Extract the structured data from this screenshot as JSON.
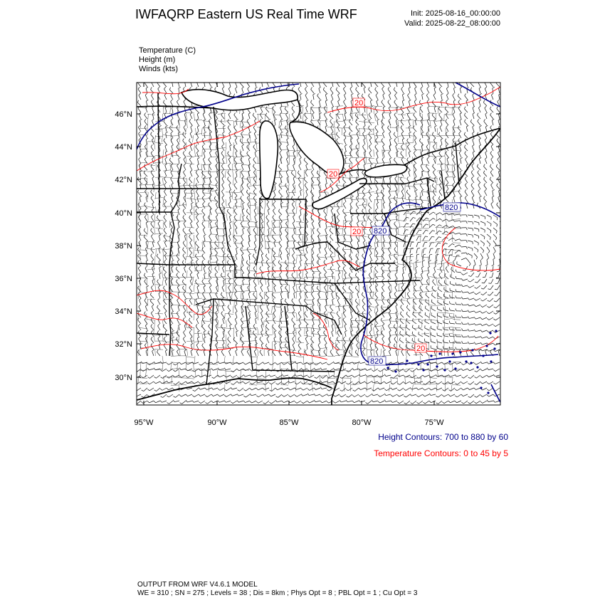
{
  "header": {
    "title": "IWFAQRP Eastern US Real Time WRF",
    "init": "Init: 2025-08-16_00:00:00",
    "valid": "Valid: 2025-08-22_08:00:00"
  },
  "fields": [
    "Temperature   (C)",
    "Height   (m)",
    "Winds   (kts)"
  ],
  "map": {
    "lat_labels": [
      "46°N",
      "44°N",
      "42°N",
      "40°N",
      "38°N",
      "36°N",
      "34°N",
      "32°N",
      "30°N"
    ],
    "lon_labels": [
      "95°W",
      "90°W",
      "85°W",
      "80°W",
      "75°W"
    ],
    "contour_labels": {
      "temperature": [
        "20",
        "20",
        "20",
        "20"
      ],
      "height": [
        "820",
        "820",
        "820"
      ]
    },
    "colors": {
      "temperature": "#ff0000",
      "height": "#00008b",
      "boundaries": "#000000"
    }
  },
  "legend": {
    "height_contours": "Height Contours: 700 to 880 by 60",
    "temperature_contours": "Temperature Contours: 0 to 45 by 5"
  },
  "footer": {
    "line1": "OUTPUT FROM WRF V4.6.1 MODEL",
    "line2": "WE = 310 ; SN = 275 ; Levels = 38 ; Dis = 8km ; Phys Opt = 8 ; PBL Opt = 1 ; Cu Opt = 3"
  }
}
